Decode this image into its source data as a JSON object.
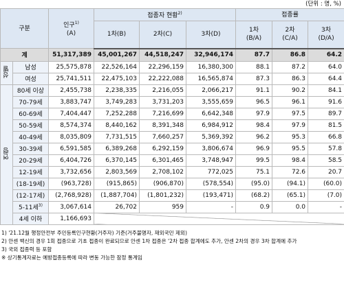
{
  "unit": "(단위 : 명, %)",
  "header": {
    "category": "구분",
    "population": "인구",
    "population_note": "1)",
    "population_sub": "(A)",
    "vaccinated": "접종자 현황",
    "vaccinated_note": "2)",
    "rate": "접종률",
    "dose_cols": [
      {
        "label": "1차",
        "sub": "(B)"
      },
      {
        "label": "2차",
        "sub": "(C)"
      },
      {
        "label": "3차",
        "sub": "(D)"
      }
    ],
    "rate_cols": [
      {
        "label": "1차",
        "sub": "(B/A)"
      },
      {
        "label": "2차",
        "sub": "(C/A)"
      },
      {
        "label": "3차",
        "sub": "(D/A)"
      }
    ]
  },
  "total": {
    "label": "계",
    "cells": [
      "51,317,389",
      "45,001,267",
      "44,518,247",
      "32,946,174",
      "87.7",
      "86.8",
      "64.2"
    ]
  },
  "groups": [
    {
      "label": "성별",
      "rows": [
        {
          "label": "남성",
          "cells": [
            "25,575,878",
            "22,526,164",
            "22,296,159",
            "16,380,300",
            "88.1",
            "87.2",
            "64.0"
          ]
        },
        {
          "label": "여성",
          "cells": [
            "25,741,511",
            "22,475,103",
            "22,222,088",
            "16,565,874",
            "87.3",
            "86.3",
            "64.4"
          ]
        }
      ]
    },
    {
      "label": "연령",
      "rows": [
        {
          "label": "80세 이상",
          "cells": [
            "2,455,738",
            "2,238,335",
            "2,216,055",
            "2,066,217",
            "91.1",
            "90.2",
            "84.1"
          ]
        },
        {
          "label": "70-79세",
          "cells": [
            "3,883,747",
            "3,749,283",
            "3,731,203",
            "3,555,659",
            "96.5",
            "96.1",
            "91.6"
          ]
        },
        {
          "label": "60-69세",
          "cells": [
            "7,404,447",
            "7,252,288",
            "7,216,699",
            "6,642,348",
            "97.9",
            "97.5",
            "89.7"
          ]
        },
        {
          "label": "50-59세",
          "cells": [
            "8,574,374",
            "8,440,162",
            "8,391,348",
            "6,984,912",
            "98.4",
            "97.9",
            "81.5"
          ]
        },
        {
          "label": "40-49세",
          "cells": [
            "8,035,809",
            "7,731,515",
            "7,660,257",
            "5,369,392",
            "96.2",
            "95.3",
            "66.8"
          ]
        },
        {
          "label": "30-39세",
          "cells": [
            "6,591,585",
            "6,389,268",
            "6,292,159",
            "3,806,674",
            "96.9",
            "95.5",
            "57.8"
          ]
        },
        {
          "label": "20-29세",
          "cells": [
            "6,404,726",
            "6,370,145",
            "6,301,465",
            "3,748,947",
            "99.5",
            "98.4",
            "58.5"
          ]
        },
        {
          "label": "12-19세",
          "cells": [
            "3,732,656",
            "2,803,569",
            "2,708,102",
            "772,025",
            "75.1",
            "72.6",
            "20.7"
          ]
        },
        {
          "label": "(18-19세)",
          "cells": [
            "(963,728)",
            "(915,865)",
            "(906,870)",
            "(578,554)",
            "(95.0)",
            "(94.1)",
            "(60.0)"
          ]
        },
        {
          "label": "(12-17세)",
          "cells": [
            "(2,768,928)",
            "(1,887,704)",
            "(1,801,232)",
            "(193,471)",
            "(68.2)",
            "(65.1)",
            "(7.0)"
          ]
        },
        {
          "label": "5-11세",
          "note": "3)",
          "cells": [
            "3,067,614",
            "26,702",
            "959",
            "-",
            "0.9",
            "0.0",
            "-"
          ]
        },
        {
          "label": "4세 이하",
          "cells": [
            "1,166,693"
          ]
        }
      ]
    }
  ],
  "footnotes": [
    "1) '21.12월 행정안전부 주민등록인구현황(거주자) 기준(거주불명자, 재외국민 제외)",
    "2) 안센 백신의 경우 1회 접종으로 기초 접종이 완료되므로 안센 1차 접종은 '2차 접종 합계에도 추가, 안센 2차의 경우 3차 합계에 추가",
    "3) 국외 접종력 등 포함",
    "※ 상기통계자료는 예방접종등록에 따라 변동 가능한 잠정 통계임"
  ]
}
